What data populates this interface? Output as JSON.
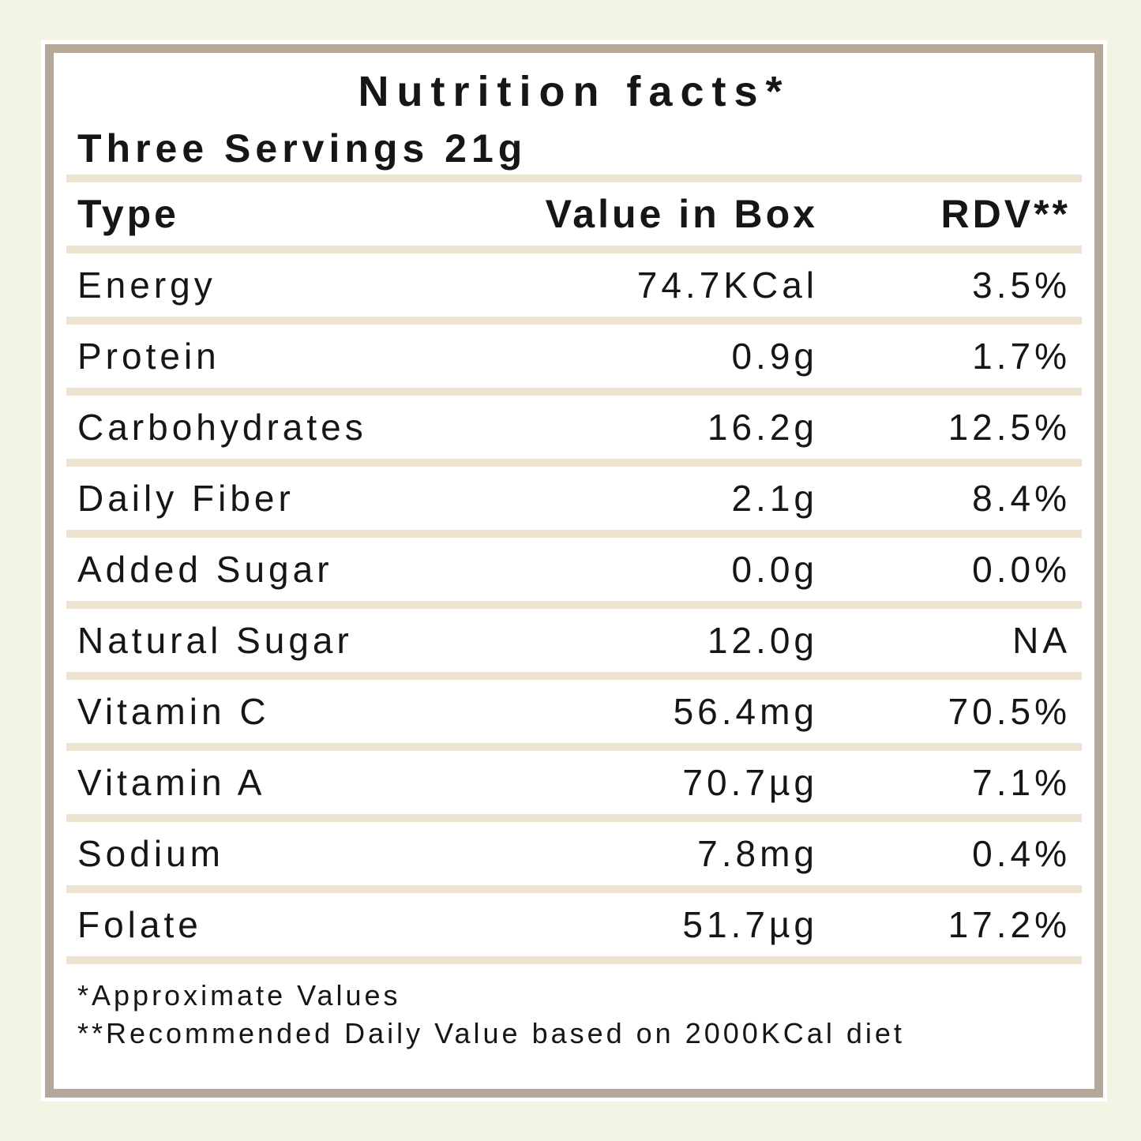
{
  "colors": {
    "page_background": "#f3f4e4",
    "card_background": "#ffffff",
    "card_border": "#b5a89b",
    "divider": "#ede3d1",
    "text": "#161616"
  },
  "label": {
    "title": "Nutrition facts*",
    "serving": "Three Servings 21g",
    "columns": {
      "type": "Type",
      "value": "Value in Box",
      "rdv": "RDV**"
    },
    "rows": [
      {
        "type": "Energy",
        "value": "74.7KCal",
        "rdv": "3.5%"
      },
      {
        "type": "Protein",
        "value": "0.9g",
        "rdv": "1.7%"
      },
      {
        "type": "Carbohydrates",
        "value": "16.2g",
        "rdv": "12.5%"
      },
      {
        "type": "Daily Fiber",
        "value": "2.1g",
        "rdv": "8.4%"
      },
      {
        "type": "Added Sugar",
        "value": "0.0g",
        "rdv": "0.0%"
      },
      {
        "type": "Natural Sugar",
        "value": "12.0g",
        "rdv": "NA"
      },
      {
        "type": "Vitamin C",
        "value": "56.4mg",
        "rdv": "70.5%"
      },
      {
        "type": "Vitamin A",
        "value": "70.7µg",
        "rdv": "7.1%"
      },
      {
        "type": "Sodium",
        "value": "7.8mg",
        "rdv": "0.4%"
      },
      {
        "type": "Folate",
        "value": "51.7µg",
        "rdv": "17.2%"
      }
    ],
    "footnotes": [
      "*Approximate Values",
      "**Recommended Daily Value based on 2000KCal diet"
    ]
  }
}
